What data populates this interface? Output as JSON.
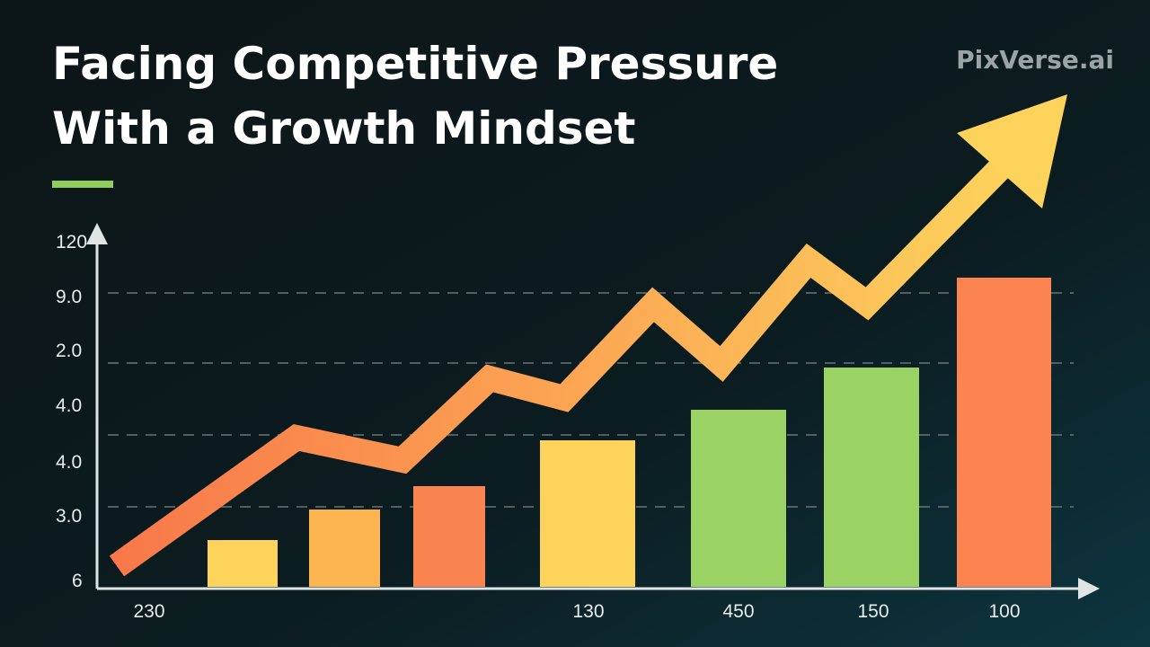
{
  "header": {
    "title_lines": [
      "Facing Competitive Pressure",
      "With a Growth Mindset"
    ],
    "watermark": "PixVerse.ai"
  },
  "y_labels": [
    "120",
    "9.0",
    "2.0",
    "4.0",
    "4.0",
    "3.0",
    "6"
  ],
  "x_labels": [
    "230",
    "130",
    "450",
    "150",
    "100"
  ]
}
